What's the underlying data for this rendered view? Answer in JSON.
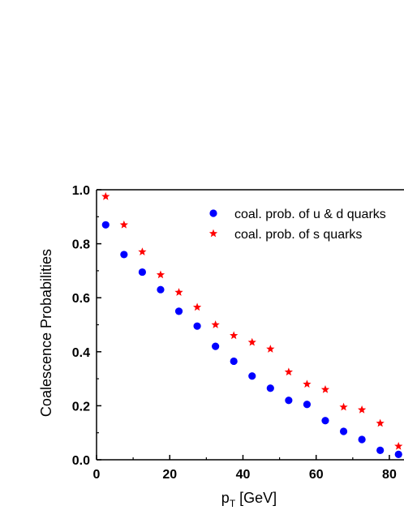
{
  "chart_data": {
    "type": "scatter",
    "title": "",
    "xlabel": "p",
    "xlabel_sub": "T",
    "xlabel_unit": "[GeV]",
    "ylabel": "Coalescence Probabilities",
    "xlim": [
      0,
      84
    ],
    "ylim": [
      0.0,
      1.0
    ],
    "xticks": [
      0,
      20,
      40,
      60,
      80
    ],
    "yticks": [
      0.0,
      0.2,
      0.4,
      0.6,
      0.8,
      1.0
    ],
    "xtick_labels": [
      "0",
      "20",
      "40",
      "60",
      "80"
    ],
    "ytick_labels": [
      "0.0",
      "0.2",
      "0.4",
      "0.6",
      "0.8",
      "1.0"
    ],
    "grid": false,
    "legend_position": "top-right",
    "series": [
      {
        "name": "coal. prob. of u & d quarks",
        "marker": "circle",
        "color": "#0000ff",
        "x": [
          2.5,
          7.5,
          12.5,
          17.5,
          22.5,
          27.5,
          32.5,
          37.5,
          42.5,
          47.5,
          52.5,
          57.5,
          62.5,
          67.5,
          72.5,
          77.5,
          82.5
        ],
        "y": [
          0.87,
          0.76,
          0.695,
          0.63,
          0.55,
          0.495,
          0.42,
          0.365,
          0.31,
          0.265,
          0.22,
          0.205,
          0.145,
          0.105,
          0.075,
          0.035,
          0.02
        ]
      },
      {
        "name": "coal. prob. of s quarks",
        "marker": "star",
        "color": "#ff0000",
        "x": [
          2.5,
          7.5,
          12.5,
          17.5,
          22.5,
          27.5,
          32.5,
          37.5,
          42.5,
          47.5,
          52.5,
          57.5,
          62.5,
          67.5,
          72.5,
          77.5,
          82.5
        ],
        "y": [
          0.975,
          0.87,
          0.77,
          0.685,
          0.62,
          0.565,
          0.5,
          0.46,
          0.435,
          0.41,
          0.325,
          0.28,
          0.26,
          0.195,
          0.185,
          0.135,
          0.05
        ]
      }
    ]
  }
}
